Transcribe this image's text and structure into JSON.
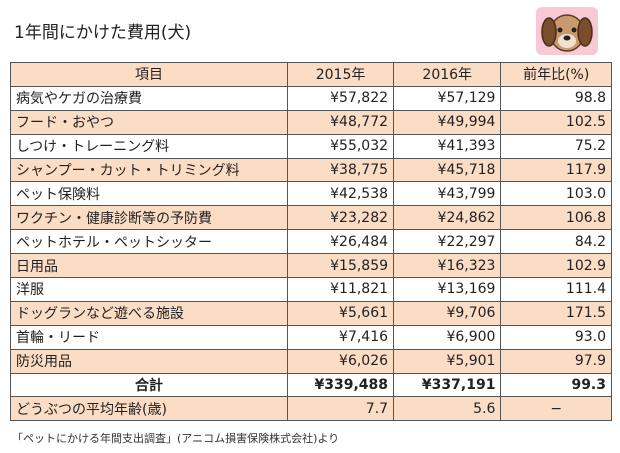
{
  "header": {
    "title": "1年間にかけた費用(犬)"
  },
  "table": {
    "columns": [
      "項目",
      "2015年",
      "2016年",
      "前年比(%)"
    ],
    "rows": [
      [
        "病気やケガの治療費",
        "¥57,822",
        "¥57,129",
        "98.8"
      ],
      [
        "フード・おやつ",
        "¥48,772",
        "¥49,994",
        "102.5"
      ],
      [
        "しつけ・トレーニング料",
        "¥55,032",
        "¥41,393",
        "75.2"
      ],
      [
        "シャンプー・カット・トリミング料",
        "¥38,775",
        "¥45,718",
        "117.9"
      ],
      [
        "ペット保険料",
        "¥42,538",
        "¥43,799",
        "103.0"
      ],
      [
        "ワクチン・健康診断等の予防費",
        "¥23,282",
        "¥24,862",
        "106.8"
      ],
      [
        "ペットホテル・ペットシッター",
        "¥26,484",
        "¥22,297",
        "84.2"
      ],
      [
        "日用品",
        "¥15,859",
        "¥16,323",
        "102.9"
      ],
      [
        "洋服",
        "¥11,821",
        "¥13,169",
        "111.4"
      ],
      [
        "ドッグランなど遊べる施設",
        "¥5,661",
        "¥9,706",
        "171.5"
      ],
      [
        "首輪・リード",
        "¥7,416",
        "¥6,900",
        "93.0"
      ],
      [
        "防災用品",
        "¥6,026",
        "¥5,901",
        "97.9"
      ]
    ],
    "total": [
      "合計",
      "¥339,488",
      "¥337,191",
      "99.3"
    ],
    "age": [
      "どうぶつの平均年齢(歳)",
      "7.7",
      "5.6",
      "−"
    ]
  },
  "footer": {
    "source": "「ペットにかける年間支出調査」(アニコム損害保険株式会社)より"
  }
}
